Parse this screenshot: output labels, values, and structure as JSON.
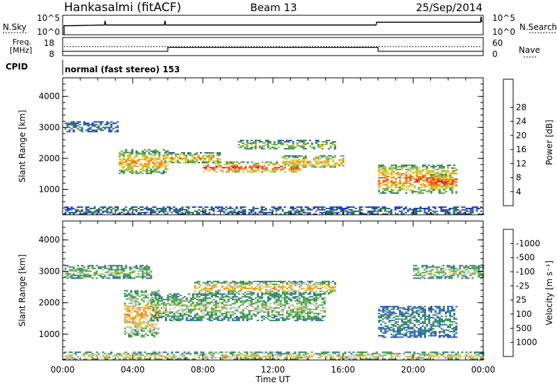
{
  "header": {
    "radar": "Hankasalmi (fitACF)",
    "beam": "Beam 13",
    "date": "25/Sep/2014"
  },
  "status_panels": {
    "nsky": {
      "label": "N.Sky",
      "right_label": "N.Search",
      "ticks_left": [
        "10^5",
        "10^0"
      ],
      "ticks_right": [
        "10^5",
        "10^0"
      ]
    },
    "freq": {
      "label_line1": "Freq.",
      "label_line2": "[MHz]",
      "ticks_left": [
        "18",
        "8"
      ],
      "ticks_right": [
        "60",
        "0"
      ],
      "right_label": "Nave",
      "freq_series": [
        {
          "t": 0,
          "v": 10.4
        },
        {
          "t": 6,
          "v": 10.4
        },
        {
          "t": 6,
          "v": 12.5
        },
        {
          "t": 18,
          "v": 12.5
        },
        {
          "t": 18,
          "v": 10.4
        },
        {
          "t": 24,
          "v": 10.4
        }
      ]
    },
    "cpid": {
      "label": "CPID",
      "text": "normal (fast stereo) 153"
    }
  },
  "chart_data": [
    {
      "type": "heatmap",
      "quantity": "power",
      "title": "",
      "xlabel": "",
      "ylabel": "Slant Range [km]",
      "xlim": [
        0,
        24
      ],
      "ylim": [
        180,
        4600
      ],
      "y_ticks": [
        1000,
        2000,
        3000,
        4000
      ],
      "colorbar": {
        "label": "Power [dB]",
        "ticks": [
          "4",
          "8",
          "12",
          "16",
          "20",
          "24",
          "28"
        ],
        "colors": [
          "#1f22f5",
          "#2a4fb8",
          "#2d7a52",
          "#4fa24a",
          "#a8c23a",
          "#f4c21a",
          "#f08a14",
          "#ec4e12",
          "#e8160f"
        ]
      },
      "bands": [
        {
          "t0": 0.1,
          "t1": 3.2,
          "r0": 2850,
          "r1": 3200,
          "level": 2
        },
        {
          "t0": 3.2,
          "t1": 6.0,
          "r0": 1500,
          "r1": 2300,
          "level": 6
        },
        {
          "t0": 5.8,
          "t1": 9.0,
          "r0": 1850,
          "r1": 2200,
          "level": 6
        },
        {
          "t0": 8.0,
          "t1": 13.5,
          "r0": 1550,
          "r1": 1900,
          "level": 8
        },
        {
          "t0": 12.5,
          "t1": 16.0,
          "r0": 1700,
          "r1": 2100,
          "level": 6
        },
        {
          "t0": 10.0,
          "t1": 15.5,
          "r0": 2300,
          "r1": 2600,
          "level": 4
        },
        {
          "t0": 18.0,
          "t1": 22.5,
          "r0": 900,
          "r1": 1800,
          "level": 7
        },
        {
          "t0": 21.0,
          "t1": 22.3,
          "r0": 1000,
          "r1": 1500,
          "level": 8
        },
        {
          "t0": 0.1,
          "t1": 24,
          "r0": 200,
          "r1": 450,
          "level": 2
        }
      ]
    },
    {
      "type": "heatmap",
      "quantity": "velocity",
      "title": "",
      "xlabel": "Time UT",
      "ylabel": "Slant Range [km]",
      "xlim": [
        0,
        24
      ],
      "ylim": [
        180,
        4600
      ],
      "x_ticks": [
        "00:00",
        "04:00",
        "08:00",
        "12:00",
        "16:00",
        "20:00",
        "00:00"
      ],
      "y_ticks": [
        1000,
        2000,
        3000,
        4000
      ],
      "colorbar": {
        "label": "Velocity [m s⁻¹]",
        "ticks": [
          "1000",
          "500",
          "100",
          "25",
          "-25",
          "-100",
          "-500",
          "-1000"
        ],
        "colors": [
          "#2545c8",
          "#2d6bb0",
          "#2f8a5a",
          "#4faa3a",
          "#b8b8b0",
          "#f2c229",
          "#f09022",
          "#ec5c17",
          "#e81a12"
        ]
      },
      "bands": [
        {
          "t0": 0.1,
          "t1": 5.0,
          "r0": 2800,
          "r1": 3200,
          "level": 4
        },
        {
          "t0": 3.5,
          "t1": 5.5,
          "r0": 900,
          "r1": 2400,
          "level": 6
        },
        {
          "t0": 5.0,
          "t1": 15.0,
          "r0": 1450,
          "r1": 2300,
          "level": 4
        },
        {
          "t0": 7.5,
          "t1": 15.5,
          "r0": 2300,
          "r1": 2700,
          "level": 6
        },
        {
          "t0": 18.0,
          "t1": 22.5,
          "r0": 900,
          "r1": 1900,
          "level": 2
        },
        {
          "t0": 20.0,
          "t1": 24,
          "r0": 2800,
          "r1": 3200,
          "level": 4
        },
        {
          "t0": 0.1,
          "t1": 24,
          "r0": 200,
          "r1": 450,
          "level": 5
        }
      ]
    }
  ]
}
